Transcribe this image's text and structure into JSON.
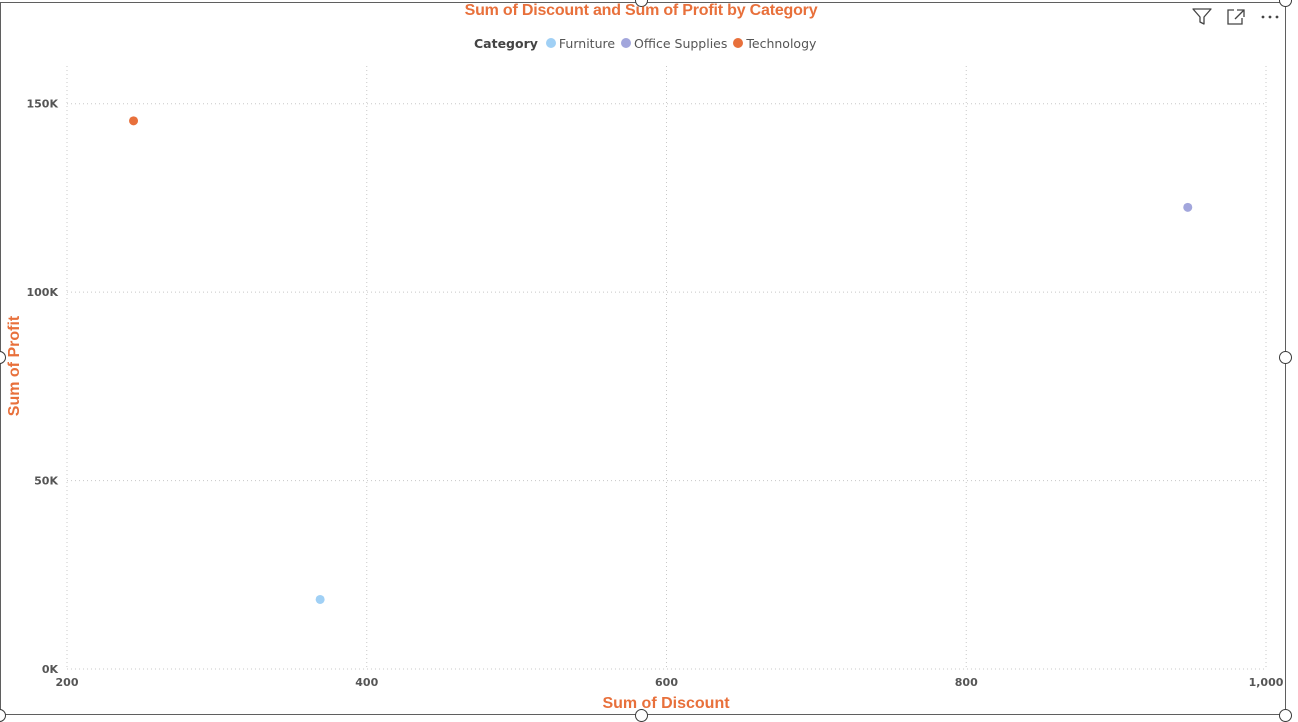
{
  "toolbar": {
    "filter_icon": "filter-icon",
    "focus_icon": "focus-mode-icon",
    "more_icon": "more-options-icon"
  },
  "legend": {
    "title": "Category"
  },
  "colors": {
    "title": "#e8703b",
    "Furniture": "#a0d0f5",
    "Office Supplies": "#a2a6dc",
    "Technology": "#e8703b"
  },
  "chart_data": {
    "type": "scatter",
    "title": "Sum of Discount and Sum of Profit by Category",
    "xlabel": "Sum of Discount",
    "ylabel": "Sum of Profit",
    "xlim": [
      200,
      1000
    ],
    "ylim": [
      0,
      160000
    ],
    "x_ticks": [
      200,
      400,
      600,
      800,
      1000
    ],
    "x_tick_labels": [
      "200",
      "400",
      "600",
      "800",
      "1,000"
    ],
    "y_ticks": [
      0,
      50000,
      100000,
      150000
    ],
    "y_tick_labels": [
      "0K",
      "50K",
      "100K",
      "150K"
    ],
    "grid": true,
    "legend_position": "top-center",
    "series": [
      {
        "name": "Furniture",
        "x": [
          368.9
        ],
        "y": [
          18451
        ]
      },
      {
        "name": "Office Supplies",
        "x": [
          947.8
        ],
        "y": [
          122491
        ]
      },
      {
        "name": "Technology",
        "x": [
          244.4
        ],
        "y": [
          145455
        ]
      }
    ]
  }
}
